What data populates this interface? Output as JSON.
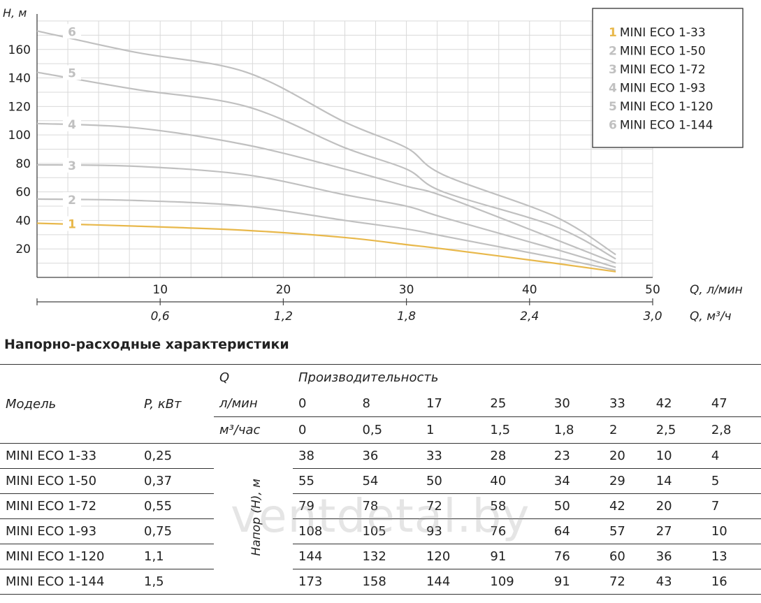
{
  "chart_data": {
    "type": "line",
    "y_label": "H, м",
    "y_ticks": [
      20,
      40,
      60,
      80,
      100,
      120,
      140,
      160
    ],
    "ylim": [
      0,
      180
    ],
    "x_label_lmin": "Q, л/мин",
    "x_ticks_lmin": [
      "10",
      "20",
      "30",
      "40",
      "50"
    ],
    "x_label_m3h": "Q, м³/ч",
    "x_ticks_m3h": [
      "0,6",
      "1,2",
      "1,8",
      "2,4",
      "3,0"
    ],
    "xlim": [
      0,
      50
    ],
    "grid": true,
    "legend_position": "top-right",
    "x": [
      0,
      8,
      17,
      25,
      30,
      33,
      42,
      47
    ],
    "series": [
      {
        "name": "MINI ECO 1-33",
        "number": "1",
        "values": [
          38,
          36,
          33,
          28,
          23,
          20,
          10,
          4
        ],
        "color": "#e8b84b"
      },
      {
        "name": "MINI ECO 1-50",
        "number": "2",
        "values": [
          55,
          54,
          50,
          40,
          34,
          29,
          14,
          5
        ],
        "color": "#c0c0c0"
      },
      {
        "name": "MINI ECO 1-72",
        "number": "3",
        "values": [
          79,
          78,
          72,
          58,
          50,
          42,
          20,
          7
        ],
        "color": "#c0c0c0"
      },
      {
        "name": "MINI ECO 1-93",
        "number": "4",
        "values": [
          108,
          105,
          93,
          76,
          64,
          57,
          27,
          10
        ],
        "color": "#c0c0c0"
      },
      {
        "name": "MINI ECO 1-120",
        "number": "5",
        "values": [
          144,
          132,
          120,
          91,
          76,
          60,
          36,
          13
        ],
        "color": "#c0c0c0"
      },
      {
        "name": "MINI ECO 1-144",
        "number": "6",
        "values": [
          173,
          158,
          144,
          109,
          91,
          72,
          43,
          16
        ],
        "color": "#c0c0c0"
      }
    ]
  },
  "table": {
    "title": "Напорно-расходные характеристики",
    "col_model": "Модель",
    "col_power": "P, кВт",
    "q_label": "Q",
    "productivity_label": "Производительность",
    "unit_lmin": "л/мин",
    "unit_m3h": "м³/час",
    "head_label": "Напор (Н), м",
    "flow_lmin": [
      "0",
      "8",
      "17",
      "25",
      "30",
      "33",
      "42",
      "47"
    ],
    "flow_m3h": [
      "0",
      "0,5",
      "1",
      "1,5",
      "1,8",
      "2",
      "2,5",
      "2,8"
    ],
    "rows": [
      {
        "model": "MINI ECO 1-33",
        "power": "0,25",
        "heads": [
          "38",
          "36",
          "33",
          "28",
          "23",
          "20",
          "10",
          "4"
        ]
      },
      {
        "model": "MINI ECO 1-50",
        "power": "0,37",
        "heads": [
          "55",
          "54",
          "50",
          "40",
          "34",
          "29",
          "14",
          "5"
        ]
      },
      {
        "model": "MINI ECO 1-72",
        "power": "0,55",
        "heads": [
          "79",
          "78",
          "72",
          "58",
          "50",
          "42",
          "20",
          "7"
        ]
      },
      {
        "model": "MINI ECO 1-93",
        "power": "0,75",
        "heads": [
          "108",
          "105",
          "93",
          "76",
          "64",
          "57",
          "27",
          "10"
        ]
      },
      {
        "model": "MINI ECO 1-120",
        "power": "1,1",
        "heads": [
          "144",
          "132",
          "120",
          "91",
          "76",
          "60",
          "36",
          "13"
        ]
      },
      {
        "model": "MINI ECO 1-144",
        "power": "1,5",
        "heads": [
          "173",
          "158",
          "144",
          "109",
          "91",
          "72",
          "43",
          "16"
        ]
      }
    ]
  },
  "watermark": "ventdetal.by"
}
